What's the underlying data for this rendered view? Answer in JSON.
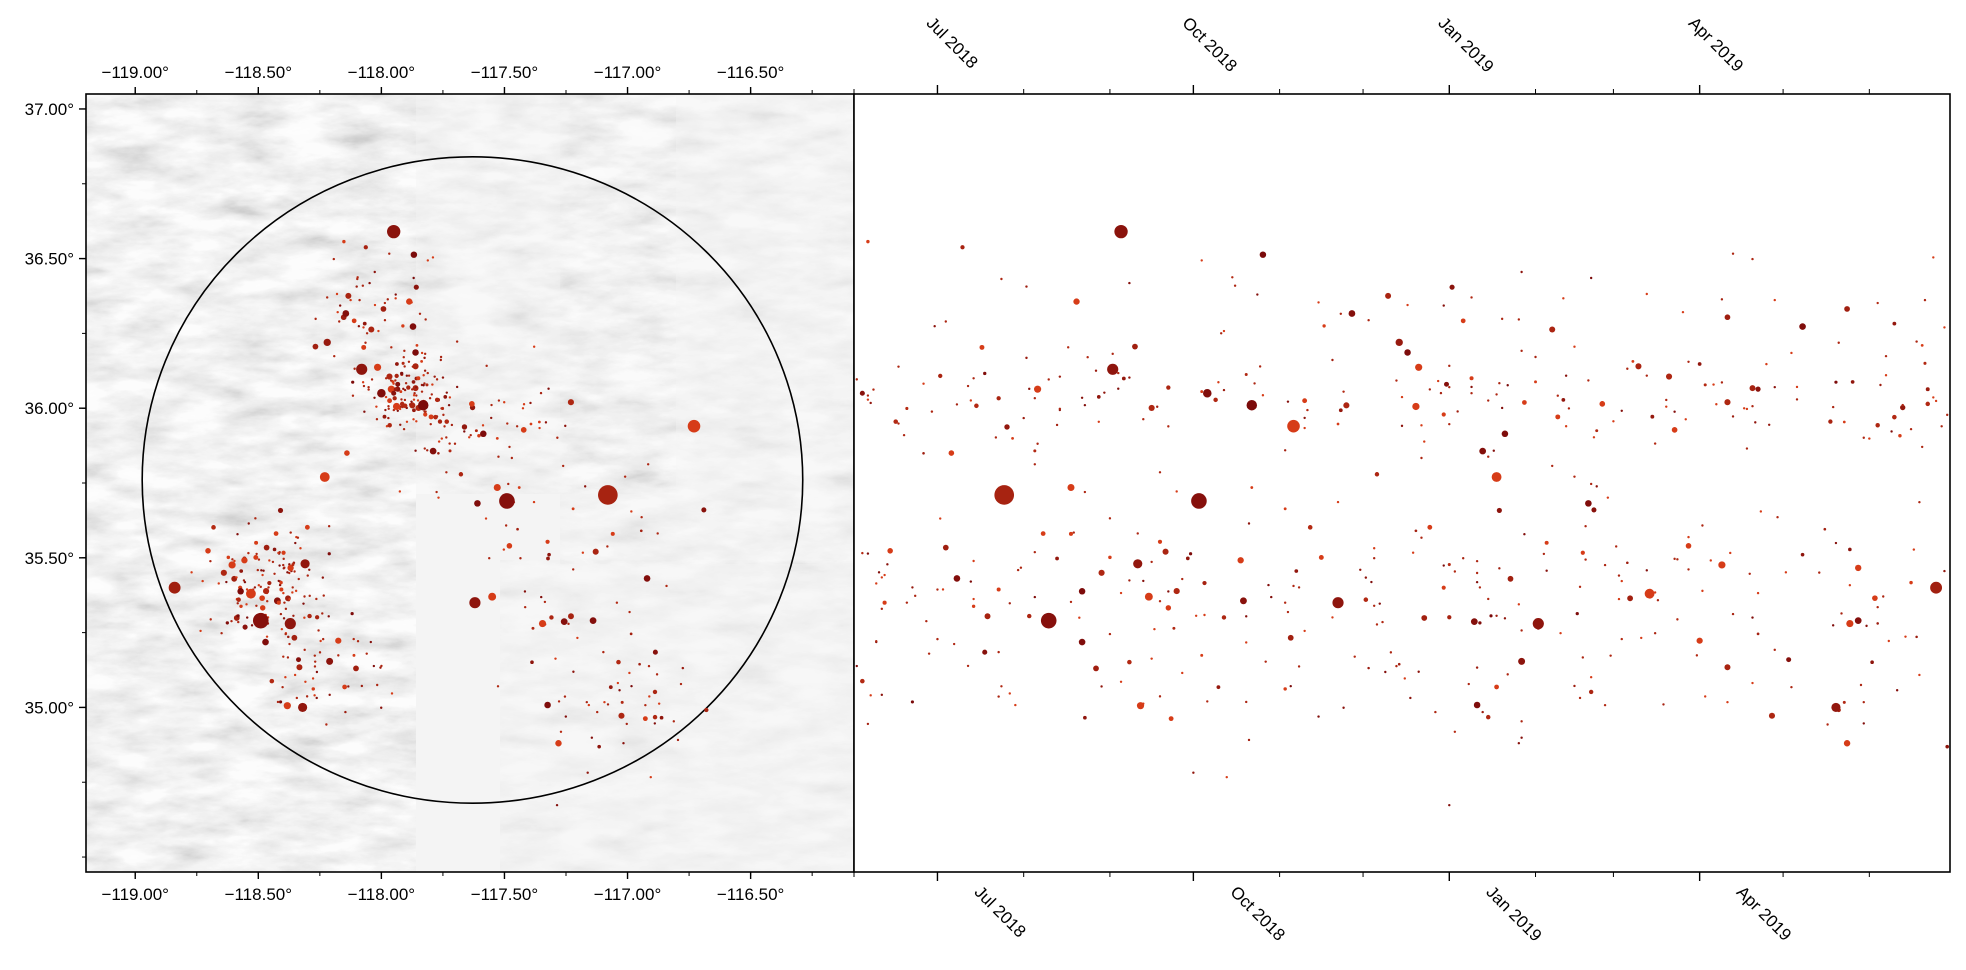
{
  "map": {
    "lon_range": [
      -119.2,
      -116.08
    ],
    "lat_range": [
      34.45,
      37.05
    ],
    "xtick_labels": [
      {
        "value": -119.0,
        "label": "−119.00°"
      },
      {
        "value": -118.5,
        "label": "−118.50°"
      },
      {
        "value": -118.0,
        "label": "−118.00°"
      },
      {
        "value": -117.5,
        "label": "−117.50°"
      },
      {
        "value": -117.0,
        "label": "−117.00°"
      },
      {
        "value": -116.5,
        "label": "−116.50°"
      }
    ],
    "ytick_labels": [
      {
        "value": 37.0,
        "label": "37.00°"
      },
      {
        "value": 36.5,
        "label": "36.50°"
      },
      {
        "value": 36.0,
        "label": "36.00°"
      },
      {
        "value": 35.5,
        "label": "35.50°"
      },
      {
        "value": 35.0,
        "label": "35.00°"
      }
    ],
    "circle": {
      "center_lon": -117.63,
      "center_lat": 35.76,
      "radius_deg_lat": 1.08
    },
    "terrain": "grayscale shaded relief",
    "marker_color_range": [
      "#7a0a0a",
      "#e0421a"
    ]
  },
  "timeline": {
    "date_range": [
      "2018-06-01",
      "2019-06-30"
    ],
    "tick_labels": [
      {
        "date": "2018-07-01",
        "label": "Jul 2018"
      },
      {
        "date": "2018-10-01",
        "label": "Oct 2018"
      },
      {
        "date": "2019-01-01",
        "label": "Jan 2019"
      },
      {
        "date": "2019-04-01",
        "label": "Apr 2019"
      }
    ],
    "minor_ticks": [
      "2018-06-01",
      "2018-08-01",
      "2018-09-01",
      "2018-11-01",
      "2018-12-01",
      "2019-02-01",
      "2019-03-01",
      "2019-05-01",
      "2019-06-01"
    ],
    "y_axis": "latitude (shared with map)"
  },
  "chart_data": {
    "type": "scatter",
    "series": [
      {
        "points": [
          {
            "date": "2018-07-25",
            "lon": -117.08,
            "lat": 35.71,
            "mag": 5.4
          },
          {
            "date": "2018-10-03",
            "lon": -117.49,
            "lat": 35.69,
            "mag": 4.9
          },
          {
            "date": "2018-09-05",
            "lon": -117.95,
            "lat": 36.59,
            "mag": 4.6
          },
          {
            "date": "2018-08-10",
            "lon": -118.49,
            "lat": 35.29,
            "mag": 4.9
          },
          {
            "date": "2018-11-06",
            "lon": -116.73,
            "lat": 35.94,
            "mag": 4.5
          },
          {
            "date": "2019-06-25",
            "lon": -118.84,
            "lat": 35.4,
            "mag": 4.4
          },
          {
            "date": "2018-11-22",
            "lon": -117.62,
            "lat": 35.35,
            "mag": 4.3
          },
          {
            "date": "2019-01-18",
            "lon": -118.23,
            "lat": 35.77,
            "mag": 4.1
          },
          {
            "date": "2019-02-02",
            "lon": -118.37,
            "lat": 35.28,
            "mag": 4.3
          },
          {
            "date": "2019-05-20",
            "lon": -118.32,
            "lat": 35.0,
            "mag": 4.0
          },
          {
            "date": "2018-09-02",
            "lon": -118.08,
            "lat": 36.13,
            "mag": 4.3
          },
          {
            "date": "2018-10-22",
            "lon": -117.83,
            "lat": 36.01,
            "mag": 4.2
          },
          {
            "date": "2019-03-14",
            "lon": -118.53,
            "lat": 35.38,
            "mag": 4.1
          },
          {
            "date": "2018-09-11",
            "lon": -118.31,
            "lat": 35.48,
            "mag": 4.0
          },
          {
            "date": "2018-10-06",
            "lon": -118.0,
            "lat": 36.05,
            "mag": 3.9
          },
          {
            "date": "2018-09-15",
            "lon": -117.55,
            "lat": 35.37,
            "mag": 3.8
          },
          {
            "date": "2018-12-14",
            "lon": -118.22,
            "lat": 36.22,
            "mag": 3.7
          },
          {
            "date": "2019-05-28",
            "lon": -117.14,
            "lat": 35.29,
            "mag": 3.6
          },
          {
            "date": "2019-04-11",
            "lon": -117.23,
            "lat": 36.02,
            "mag": 3.5
          },
          {
            "date": "2018-08-29",
            "lon": -118.64,
            "lat": 35.45,
            "mag": 3.5
          },
          {
            "date": "2019-03-28",
            "lon": -117.48,
            "lat": 35.54,
            "mag": 3.4
          },
          {
            "date": "2018-07-06",
            "lon": -118.14,
            "lat": 35.85,
            "mag": 3.4
          },
          {
            "date": "2019-02-22",
            "lon": -116.69,
            "lat": 35.66,
            "mag": 3.3
          },
          {
            "date": "2018-06-04",
            "lon": -117.95,
            "lat": 36.05,
            "mag": 3.3
          },
          {
            "date": "2019-06-10",
            "lon": -117.78,
            "lat": 35.97,
            "mag": 3.2
          },
          {
            "date": "2018-12-02",
            "lon": -118.58,
            "lat": 35.36,
            "mag": 3.2
          },
          {
            "date": "2019-01-09",
            "lon": -117.85,
            "lat": 36.1,
            "mag": 3.1
          },
          {
            "date": "2018-08-18",
            "lon": -117.06,
            "lat": 35.58,
            "mag": 3.1
          }
        ]
      }
    ]
  }
}
